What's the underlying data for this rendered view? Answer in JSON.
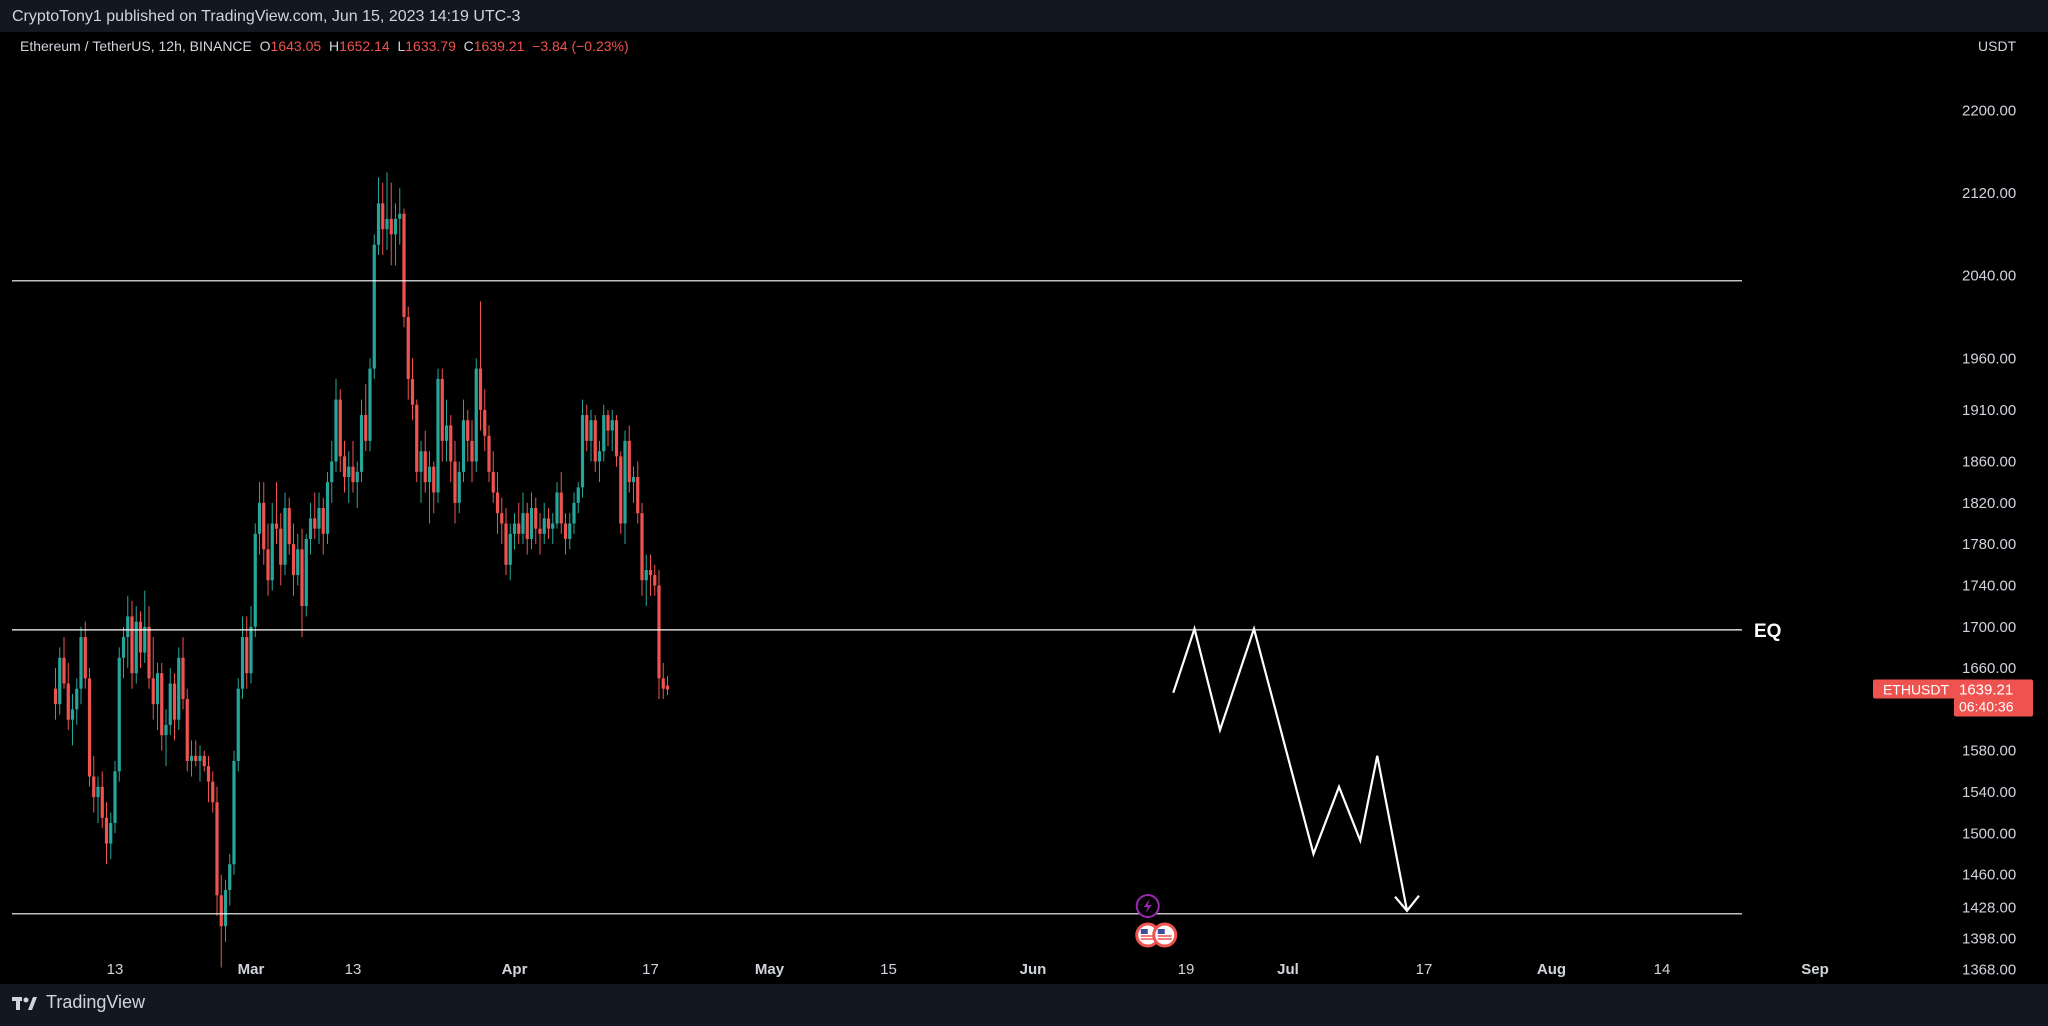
{
  "header": {
    "published_by": "CryptoTony1 published on TradingView.com, Jun 15, 2023 14:19 UTC-3"
  },
  "footer": {
    "brand": "TradingView"
  },
  "colors": {
    "background": "#000000",
    "frame": "#131722",
    "up": "#26a69a",
    "down": "#ef5350",
    "text": "#d1d4dc",
    "lines": "#ffffff",
    "event_purple": "#9c27b0"
  },
  "chart_data": {
    "type": "candlestick",
    "legend": {
      "symbol": "Ethereum / TetherUS, 12h, BINANCE",
      "o_label": "O",
      "o_value": "1643.05",
      "h_label": "H",
      "h_value": "1652.14",
      "l_label": "L",
      "l_value": "1633.79",
      "c_label": "C",
      "c_value": "1639.21",
      "change": "−3.84 (−0.23%)"
    },
    "currency": "USDT",
    "ylim": [
      1355,
      2275
    ],
    "y_ticks": [
      {
        "label": "2200.00",
        "v": 2200
      },
      {
        "label": "2120.00",
        "v": 2120
      },
      {
        "label": "2040.00",
        "v": 2040
      },
      {
        "label": "1960.00",
        "v": 1960
      },
      {
        "label": "1910.00",
        "v": 1910
      },
      {
        "label": "1860.00",
        "v": 1860
      },
      {
        "label": "1820.00",
        "v": 1820
      },
      {
        "label": "1780.00",
        "v": 1780
      },
      {
        "label": "1740.00",
        "v": 1740
      },
      {
        "label": "1700.00",
        "v": 1700
      },
      {
        "label": "1660.00",
        "v": 1660
      },
      {
        "label": "1580.00",
        "v": 1580
      },
      {
        "label": "1540.00",
        "v": 1540
      },
      {
        "label": "1500.00",
        "v": 1500
      },
      {
        "label": "1460.00",
        "v": 1460
      },
      {
        "label": "1428.00",
        "v": 1428
      },
      {
        "label": "1398.00",
        "v": 1398
      },
      {
        "label": "1368.00",
        "v": 1368
      }
    ],
    "x_ticks": [
      {
        "label": "13",
        "date": "2023-02-13",
        "bold": false
      },
      {
        "label": "Mar",
        "date": "2023-03-01",
        "bold": true
      },
      {
        "label": "13",
        "date": "2023-03-13",
        "bold": false
      },
      {
        "label": "Apr",
        "date": "2023-04-01",
        "bold": true
      },
      {
        "label": "17",
        "date": "2023-04-17",
        "bold": false
      },
      {
        "label": "May",
        "date": "2023-05-01",
        "bold": true
      },
      {
        "label": "15",
        "date": "2023-05-15",
        "bold": false
      },
      {
        "label": "Jun",
        "date": "2023-06-01",
        "bold": true
      },
      {
        "label": "19",
        "date": "2023-06-19",
        "bold": false
      },
      {
        "label": "Jul",
        "date": "2023-07-01",
        "bold": true
      },
      {
        "label": "17",
        "date": "2023-07-17",
        "bold": false
      },
      {
        "label": "Aug",
        "date": "2023-08-01",
        "bold": true
      },
      {
        "label": "14",
        "date": "2023-08-14",
        "bold": false
      },
      {
        "label": "Sep",
        "date": "2023-09-01",
        "bold": true
      }
    ],
    "candle_interval": "12h",
    "first_candle_date": "2023-02-06",
    "candles": [
      [
        1640,
        1660,
        1610,
        1625
      ],
      [
        1625,
        1680,
        1615,
        1670
      ],
      [
        1670,
        1690,
        1640,
        1645
      ],
      [
        1645,
        1665,
        1600,
        1610
      ],
      [
        1610,
        1635,
        1585,
        1620
      ],
      [
        1620,
        1650,
        1605,
        1640
      ],
      [
        1640,
        1700,
        1625,
        1690
      ],
      [
        1690,
        1705,
        1640,
        1650
      ],
      [
        1650,
        1660,
        1545,
        1555
      ],
      [
        1555,
        1575,
        1520,
        1535
      ],
      [
        1535,
        1555,
        1510,
        1545
      ],
      [
        1545,
        1560,
        1505,
        1515
      ],
      [
        1515,
        1530,
        1470,
        1490
      ],
      [
        1490,
        1520,
        1475,
        1510
      ],
      [
        1510,
        1570,
        1500,
        1560
      ],
      [
        1560,
        1680,
        1550,
        1670
      ],
      [
        1670,
        1700,
        1650,
        1690
      ],
      [
        1690,
        1730,
        1660,
        1710
      ],
      [
        1710,
        1725,
        1640,
        1655
      ],
      [
        1655,
        1720,
        1645,
        1705
      ],
      [
        1705,
        1715,
        1660,
        1675
      ],
      [
        1675,
        1735,
        1665,
        1700
      ],
      [
        1700,
        1720,
        1640,
        1650
      ],
      [
        1650,
        1690,
        1610,
        1625
      ],
      [
        1625,
        1665,
        1600,
        1655
      ],
      [
        1655,
        1665,
        1580,
        1595
      ],
      [
        1595,
        1620,
        1565,
        1605
      ],
      [
        1605,
        1660,
        1595,
        1645
      ],
      [
        1645,
        1655,
        1590,
        1610
      ],
      [
        1610,
        1680,
        1600,
        1670
      ],
      [
        1670,
        1690,
        1620,
        1630
      ],
      [
        1630,
        1640,
        1560,
        1570
      ],
      [
        1570,
        1590,
        1555,
        1575
      ],
      [
        1575,
        1590,
        1565,
        1570
      ],
      [
        1570,
        1585,
        1550,
        1575
      ],
      [
        1575,
        1580,
        1560,
        1565
      ],
      [
        1565,
        1575,
        1530,
        1550
      ],
      [
        1550,
        1560,
        1520,
        1530
      ],
      [
        1530,
        1545,
        1420,
        1440
      ],
      [
        1440,
        1460,
        1370,
        1410
      ],
      [
        1410,
        1455,
        1395,
        1445
      ],
      [
        1445,
        1480,
        1430,
        1470
      ],
      [
        1470,
        1580,
        1460,
        1570
      ],
      [
        1570,
        1650,
        1560,
        1640
      ],
      [
        1640,
        1710,
        1630,
        1690
      ],
      [
        1690,
        1710,
        1640,
        1655
      ],
      [
        1655,
        1720,
        1645,
        1700
      ],
      [
        1700,
        1800,
        1690,
        1790
      ],
      [
        1790,
        1840,
        1770,
        1820
      ],
      [
        1820,
        1840,
        1760,
        1775
      ],
      [
        1775,
        1800,
        1730,
        1745
      ],
      [
        1745,
        1820,
        1735,
        1800
      ],
      [
        1800,
        1840,
        1780,
        1795
      ],
      [
        1795,
        1810,
        1740,
        1760
      ],
      [
        1760,
        1830,
        1750,
        1815
      ],
      [
        1815,
        1825,
        1770,
        1780
      ],
      [
        1780,
        1800,
        1730,
        1750
      ],
      [
        1750,
        1790,
        1740,
        1775
      ],
      [
        1775,
        1795,
        1690,
        1720
      ],
      [
        1720,
        1790,
        1710,
        1785
      ],
      [
        1785,
        1820,
        1770,
        1805
      ],
      [
        1805,
        1830,
        1785,
        1795
      ],
      [
        1795,
        1830,
        1780,
        1815
      ],
      [
        1815,
        1825,
        1770,
        1790
      ],
      [
        1790,
        1850,
        1780,
        1840
      ],
      [
        1840,
        1880,
        1820,
        1860
      ],
      [
        1860,
        1940,
        1850,
        1920
      ],
      [
        1920,
        1930,
        1850,
        1865
      ],
      [
        1865,
        1880,
        1830,
        1845
      ],
      [
        1845,
        1870,
        1820,
        1855
      ],
      [
        1855,
        1880,
        1830,
        1840
      ],
      [
        1840,
        1860,
        1815,
        1850
      ],
      [
        1850,
        1920,
        1840,
        1905
      ],
      [
        1905,
        1935,
        1870,
        1880
      ],
      [
        1880,
        1960,
        1870,
        1950
      ],
      [
        1950,
        2080,
        1940,
        2070
      ],
      [
        2070,
        2135,
        2060,
        2110
      ],
      [
        2110,
        2130,
        2060,
        2085
      ],
      [
        2085,
        2140,
        2065,
        2095
      ],
      [
        2095,
        2130,
        2050,
        2080
      ],
      [
        2080,
        2110,
        2050,
        2095
      ],
      [
        2095,
        2125,
        2070,
        2100
      ],
      [
        2100,
        2105,
        1990,
        2000
      ],
      [
        2000,
        2010,
        1920,
        1940
      ],
      [
        1940,
        1960,
        1900,
        1915
      ],
      [
        1915,
        1920,
        1840,
        1850
      ],
      [
        1850,
        1880,
        1820,
        1870
      ],
      [
        1870,
        1890,
        1830,
        1840
      ],
      [
        1840,
        1870,
        1800,
        1855
      ],
      [
        1855,
        1860,
        1810,
        1830
      ],
      [
        1830,
        1950,
        1820,
        1940
      ],
      [
        1940,
        1950,
        1860,
        1880
      ],
      [
        1880,
        1920,
        1860,
        1895
      ],
      [
        1895,
        1905,
        1840,
        1860
      ],
      [
        1860,
        1880,
        1800,
        1820
      ],
      [
        1820,
        1860,
        1810,
        1850
      ],
      [
        1850,
        1920,
        1840,
        1900
      ],
      [
        1900,
        1910,
        1860,
        1880
      ],
      [
        1880,
        1900,
        1840,
        1860
      ],
      [
        1860,
        1960,
        1850,
        1950
      ],
      [
        1950,
        2015,
        1890,
        1910
      ],
      [
        1910,
        1930,
        1870,
        1885
      ],
      [
        1885,
        1895,
        1840,
        1850
      ],
      [
        1850,
        1870,
        1820,
        1830
      ],
      [
        1830,
        1850,
        1790,
        1810
      ],
      [
        1810,
        1825,
        1780,
        1800
      ],
      [
        1800,
        1815,
        1750,
        1760
      ],
      [
        1760,
        1800,
        1745,
        1790
      ],
      [
        1790,
        1810,
        1775,
        1800
      ],
      [
        1800,
        1820,
        1780,
        1790
      ],
      [
        1790,
        1830,
        1780,
        1810
      ],
      [
        1810,
        1820,
        1770,
        1785
      ],
      [
        1785,
        1830,
        1775,
        1815
      ],
      [
        1815,
        1825,
        1780,
        1795
      ],
      [
        1795,
        1810,
        1770,
        1790
      ],
      [
        1790,
        1820,
        1780,
        1805
      ],
      [
        1805,
        1815,
        1785,
        1795
      ],
      [
        1795,
        1810,
        1780,
        1800
      ],
      [
        1800,
        1840,
        1795,
        1830
      ],
      [
        1830,
        1850,
        1790,
        1800
      ],
      [
        1800,
        1810,
        1770,
        1785
      ],
      [
        1785,
        1810,
        1775,
        1800
      ],
      [
        1800,
        1830,
        1790,
        1820
      ],
      [
        1820,
        1840,
        1810,
        1835
      ],
      [
        1835,
        1920,
        1825,
        1905
      ],
      [
        1905,
        1915,
        1870,
        1880
      ],
      [
        1880,
        1910,
        1860,
        1900
      ],
      [
        1900,
        1905,
        1850,
        1860
      ],
      [
        1860,
        1880,
        1840,
        1870
      ],
      [
        1870,
        1915,
        1860,
        1905
      ],
      [
        1905,
        1910,
        1875,
        1890
      ],
      [
        1890,
        1910,
        1870,
        1900
      ],
      [
        1900,
        1905,
        1855,
        1865
      ],
      [
        1865,
        1870,
        1790,
        1800
      ],
      [
        1800,
        1890,
        1780,
        1880
      ],
      [
        1880,
        1895,
        1830,
        1840
      ],
      [
        1840,
        1855,
        1820,
        1845
      ],
      [
        1845,
        1860,
        1800,
        1810
      ],
      [
        1810,
        1820,
        1730,
        1745
      ],
      [
        1745,
        1770,
        1720,
        1755
      ],
      [
        1755,
        1770,
        1730,
        1750
      ],
      [
        1750,
        1760,
        1730,
        1740
      ],
      [
        1740,
        1755,
        1630,
        1650
      ],
      [
        1650,
        1665,
        1630,
        1640
      ],
      [
        1643.05,
        1652.14,
        1633.79,
        1639.21
      ]
    ],
    "levels": [
      {
        "value": 2035,
        "label": ""
      },
      {
        "value": 1697,
        "label": "EQ"
      },
      {
        "value": 1422,
        "label": ""
      }
    ],
    "projection": [
      {
        "date": "2023-06-17T12:00",
        "v": 1636
      },
      {
        "date": "2023-06-20",
        "v": 1698
      },
      {
        "date": "2023-06-23",
        "v": 1600
      },
      {
        "date": "2023-06-27",
        "v": 1698
      },
      {
        "date": "2023-07-04",
        "v": 1480
      },
      {
        "date": "2023-07-07",
        "v": 1545
      },
      {
        "date": "2023-07-09T12:00",
        "v": 1493
      },
      {
        "date": "2023-07-11T12:00",
        "v": 1575
      },
      {
        "date": "2023-07-15",
        "v": 1425
      }
    ],
    "price_tag": {
      "symbol": "ETHUSDT",
      "price": "1639.21",
      "countdown": "06:40:36",
      "v": 1639.21
    },
    "events": [
      {
        "icon": "lightning-icon",
        "date": "2023-06-14T12:00",
        "row": 0
      },
      {
        "icon": "us-flag-icon",
        "date": "2023-06-14T12:00",
        "row": 1
      },
      {
        "icon": "us-flag-icon",
        "date": "2023-06-16T12:00",
        "row": 1
      }
    ]
  }
}
